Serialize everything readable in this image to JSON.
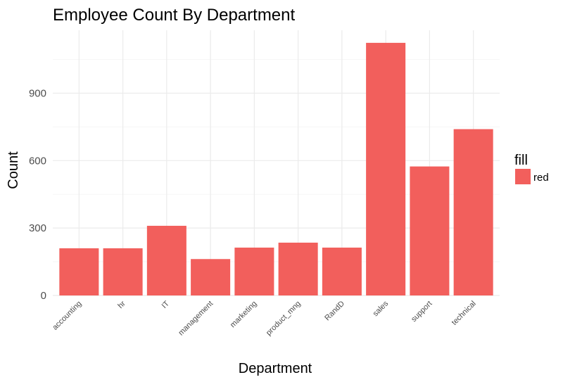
{
  "chart_data": {
    "type": "bar",
    "title": "Employee Count By Department",
    "xlabel": "Department",
    "ylabel": "Count",
    "categories": [
      "accounting",
      "hr",
      "IT",
      "management",
      "marketing",
      "product_mng",
      "RandD",
      "sales",
      "support",
      "technical"
    ],
    "series": [
      {
        "name": "red",
        "values": [
          210,
          210,
          310,
          162,
          213,
          235,
          213,
          1124,
          574,
          740
        ]
      }
    ],
    "ylim": [
      0,
      1180
    ],
    "yticks": [
      0,
      300,
      600,
      900
    ],
    "grid": true,
    "legend": {
      "title": "fill",
      "position": "right"
    },
    "colors": {
      "bar": "#f25f5c",
      "grid": "#ebebeb"
    }
  }
}
